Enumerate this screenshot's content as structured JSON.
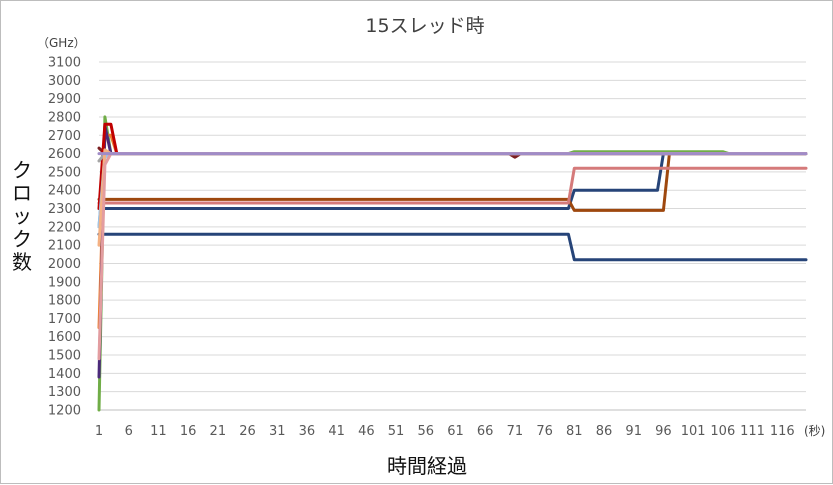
{
  "chart_data": {
    "type": "line",
    "title": "15スレッド時",
    "y_unit": "（GHz）",
    "x_unit": "(秒)",
    "ylabel": "クロック数",
    "xlabel": "時間経過",
    "ylim": [
      1200,
      3100
    ],
    "y_ticks": [
      "1200",
      "1300",
      "1400",
      "1500",
      "1600",
      "1700",
      "1800",
      "1900",
      "2000",
      "2100",
      "2200",
      "2300",
      "2400",
      "2500",
      "2600",
      "2700",
      "2800",
      "2900",
      "3000",
      "3100"
    ],
    "xlim": [
      1,
      120
    ],
    "x_ticks": [
      "1",
      "6",
      "11",
      "16",
      "21",
      "26",
      "31",
      "36",
      "41",
      "46",
      "51",
      "56",
      "61",
      "66",
      "71",
      "76",
      "81",
      "86",
      "91",
      "96",
      "101",
      "106",
      "111",
      "116"
    ],
    "grid": "horizontal",
    "legend": "none",
    "series": [
      {
        "color": "#264478",
        "x": [
          1,
          2,
          80,
          81,
          120
        ],
        "y": [
          2160,
          2160,
          2160,
          2020,
          2020
        ]
      },
      {
        "color": "#264478",
        "x": [
          1,
          2,
          80,
          81,
          95,
          96,
          120
        ],
        "y": [
          2300,
          2300,
          2300,
          2400,
          2400,
          2600,
          2600
        ]
      },
      {
        "color": "#9e480e",
        "x": [
          1,
          2,
          80,
          81,
          96,
          97,
          120
        ],
        "y": [
          2350,
          2350,
          2350,
          2290,
          2290,
          2600,
          2600
        ]
      },
      {
        "color": "#d57a7a",
        "x": [
          1,
          2,
          80,
          81,
          120
        ],
        "y": [
          2330,
          2330,
          2330,
          2520,
          2520
        ]
      },
      {
        "color": "#70ad47",
        "x": [
          1,
          2,
          3,
          80,
          81,
          106,
          107,
          120
        ],
        "y": [
          1200,
          2800,
          2600,
          2600,
          2610,
          2610,
          2600,
          2600
        ]
      },
      {
        "color": "#ed7d31",
        "x": [
          1,
          2,
          3,
          4,
          120
        ],
        "y": [
          1650,
          2700,
          2700,
          2600,
          2600
        ]
      },
      {
        "color": "#7b1f22",
        "x": [
          1,
          2,
          3,
          70,
          71,
          72,
          120
        ],
        "y": [
          2630,
          2600,
          2600,
          2600,
          2580,
          2600,
          2600
        ]
      },
      {
        "color": "#4b2a7a",
        "x": [
          1,
          2,
          3,
          120
        ],
        "y": [
          1380,
          2750,
          2600,
          2600
        ]
      },
      {
        "color": "#c00000",
        "x": [
          1,
          2,
          3,
          4,
          120
        ],
        "y": [
          2300,
          2760,
          2760,
          2600,
          2600
        ]
      },
      {
        "color": "#5b9bd5",
        "x": [
          1,
          2,
          3,
          120
        ],
        "y": [
          2200,
          2600,
          2600,
          2600
        ]
      },
      {
        "color": "#a5a5a5",
        "x": [
          1,
          2,
          120
        ],
        "y": [
          2560,
          2600,
          2600
        ]
      },
      {
        "color": "#9dc3e6",
        "x": [
          1,
          2,
          3,
          120
        ],
        "y": [
          2200,
          2580,
          2600,
          2600
        ]
      },
      {
        "color": "#f4b183",
        "x": [
          1,
          2,
          3,
          120
        ],
        "y": [
          2100,
          2620,
          2600,
          2600
        ]
      },
      {
        "color": "#e39da0",
        "x": [
          1,
          2,
          3,
          120
        ],
        "y": [
          1480,
          2540,
          2600,
          2600
        ]
      },
      {
        "color": "#a08cc7",
        "x": [
          1,
          2,
          3,
          120
        ],
        "y": [
          2600,
          2600,
          2600,
          2600
        ]
      }
    ]
  }
}
